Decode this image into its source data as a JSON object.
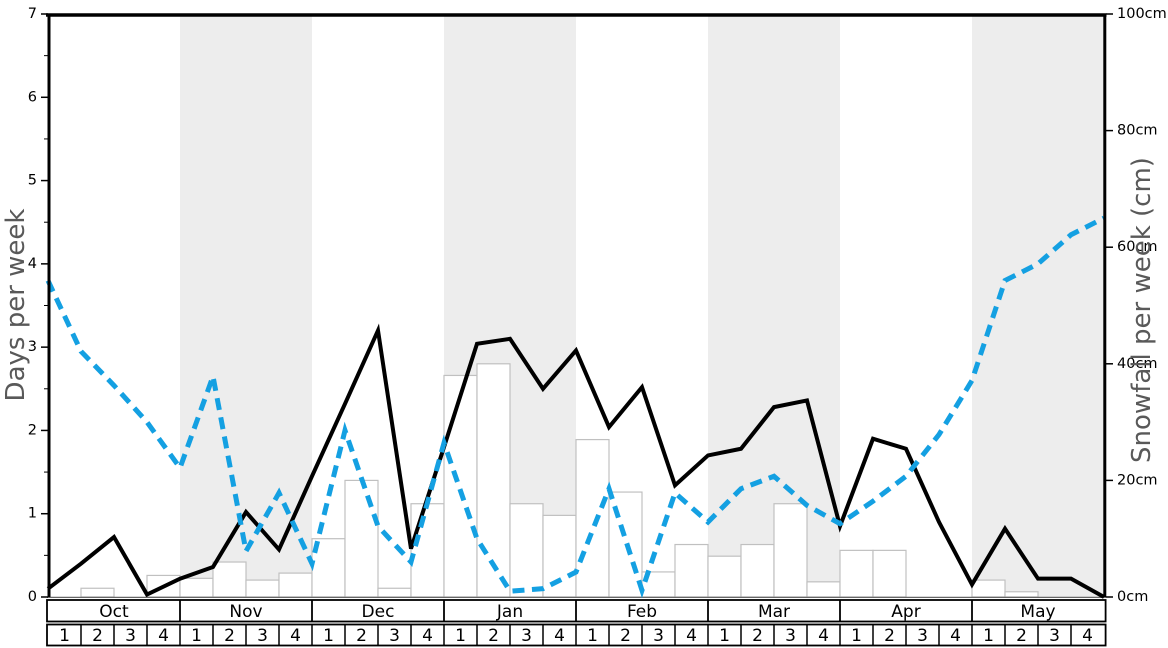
{
  "axes": {
    "left": {
      "label": "Days per week",
      "tick_labels": [
        "0",
        "1",
        "2",
        "3",
        "4",
        "5",
        "6",
        "7"
      ],
      "range": [
        0,
        7
      ]
    },
    "right": {
      "label": "Snowfall per week (cm)",
      "tick_labels": [
        "0cm",
        "20cm",
        "40cm",
        "60cm",
        "80cm",
        "100cm"
      ],
      "tick_values": [
        0,
        20,
        40,
        60,
        80,
        100
      ],
      "range": [
        0,
        100
      ]
    },
    "bottom": {
      "months": [
        "Oct",
        "Nov",
        "Dec",
        "Jan",
        "Feb",
        "Mar",
        "Apr",
        "May"
      ],
      "weeks_per_month": [
        "1",
        "2",
        "3",
        "4"
      ]
    }
  },
  "chart_data": {
    "type": "composite",
    "title": "",
    "x_categories": [
      "Oct-1",
      "Oct-2",
      "Oct-3",
      "Oct-4",
      "Nov-1",
      "Nov-2",
      "Nov-3",
      "Nov-4",
      "Dec-1",
      "Dec-2",
      "Dec-3",
      "Dec-4",
      "Jan-1",
      "Jan-2",
      "Jan-3",
      "Jan-4",
      "Feb-1",
      "Feb-2",
      "Feb-3",
      "Feb-4",
      "Mar-1",
      "Mar-2",
      "Mar-3",
      "Mar-4",
      "Apr-1",
      "Apr-2",
      "Apr-3",
      "Apr-4",
      "May-1",
      "May-2",
      "May-3",
      "May-4"
    ],
    "shaded_months": [
      "Nov",
      "Jan",
      "Mar",
      "May"
    ],
    "band_color": "#EDEDED",
    "series": [
      {
        "name": "snowfall-bars",
        "type": "bar",
        "axis": "right",
        "unit": "cm",
        "fill": "#ffffff",
        "border": "#c0c0c0",
        "values": [
          0,
          1.5,
          0,
          3.7,
          3.2,
          6,
          2.9,
          4.1,
          10,
          20,
          1.5,
          16,
          38,
          40,
          16,
          14,
          27,
          18,
          4.3,
          9,
          7,
          9,
          16,
          2.6,
          8,
          8,
          0,
          0,
          2.9,
          0.9,
          0,
          0
        ]
      },
      {
        "name": "snowy-days-solid-line",
        "type": "line",
        "style": "solid",
        "axis": "left",
        "unit": "days",
        "color": "#000000",
        "values": [
          0.1,
          0.4,
          0.72,
          0.03,
          0.22,
          0.36,
          1.02,
          0.57,
          1.45,
          2.32,
          3.2,
          0.58,
          1.8,
          3.04,
          3.1,
          2.5,
          2.96,
          2.04,
          2.52,
          1.34,
          1.7,
          1.78,
          2.28,
          2.36,
          0.85,
          1.9,
          1.78,
          0.9,
          0.15,
          0.82,
          0.22,
          0.22,
          0
        ]
      },
      {
        "name": "dashed-blue-line",
        "type": "line",
        "style": "dashed",
        "axis": "left",
        "unit": "days",
        "color": "#14A0E2",
        "values": [
          3.8,
          2.95,
          2.54,
          2.1,
          1.55,
          2.65,
          0.55,
          1.25,
          0.4,
          2.0,
          0.85,
          0.42,
          1.85,
          0.7,
          0.07,
          0.1,
          0.3,
          1.3,
          0.08,
          1.25,
          0.9,
          1.3,
          1.45,
          1.1,
          0.88,
          1.15,
          1.45,
          1.95,
          2.6,
          3.8,
          4.0,
          4.35,
          4.55
        ]
      }
    ],
    "colors": {
      "label_gray": "#595959",
      "axis_black": "#000000",
      "baseline_gray": "#666666"
    }
  }
}
